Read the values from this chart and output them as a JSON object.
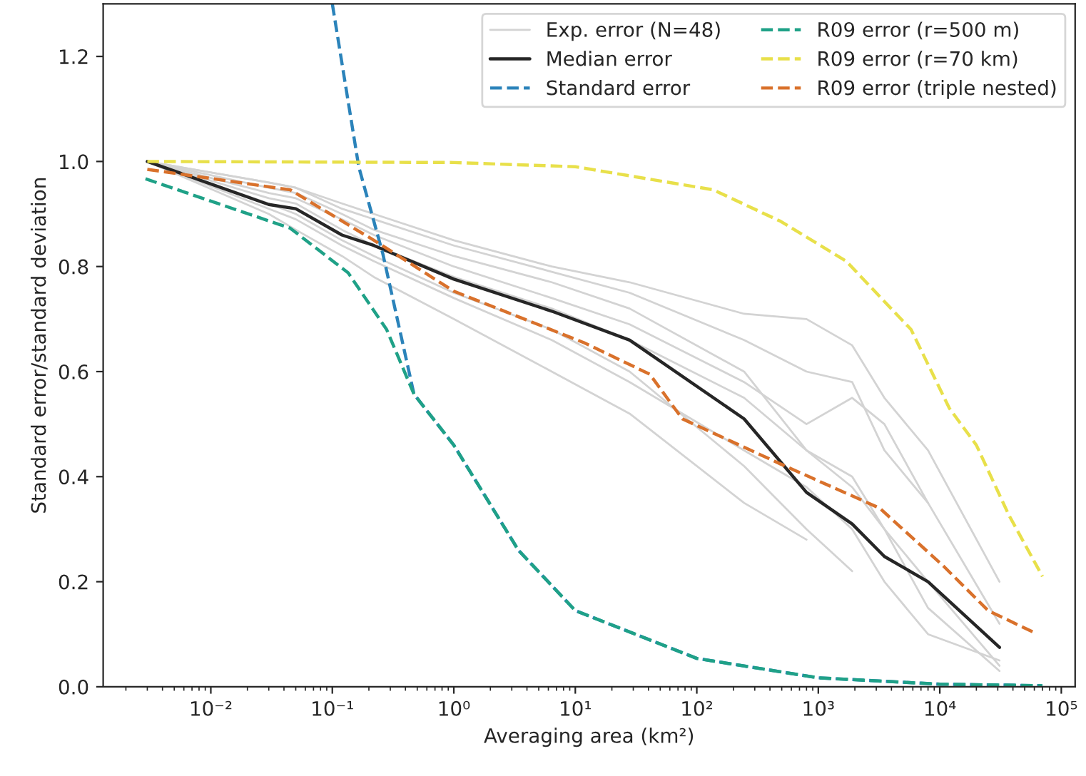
{
  "chart_data": {
    "type": "line",
    "xlabel": "Averaging area (km²)",
    "ylabel": "Standard error/standard deviation",
    "log": "x",
    "grid": false,
    "legend": "top right",
    "xlim": [
      0.0013,
      130000
    ],
    "xticks": [
      {
        "value": 0.01,
        "label": "10⁻²"
      },
      {
        "value": 0.1,
        "label": "10⁻¹"
      },
      {
        "value": 1,
        "label": "10⁰"
      },
      {
        "value": 10,
        "label": "10¹"
      },
      {
        "value": 100,
        "label": "10²"
      },
      {
        "value": 1000,
        "label": "10³"
      },
      {
        "value": 10000,
        "label": "10⁴"
      },
      {
        "value": 100000,
        "label": "10⁵"
      }
    ],
    "ylim": [
      0,
      1.3
    ],
    "yticks": [
      {
        "value": 0,
        "label": "0.0"
      },
      {
        "value": 0.2,
        "label": "0.2"
      },
      {
        "value": 0.4,
        "label": "0.4"
      },
      {
        "value": 0.6,
        "label": "0.6"
      },
      {
        "value": 0.8,
        "label": "0.8"
      },
      {
        "value": 1.0,
        "label": "1.0"
      },
      {
        "value": 1.2,
        "label": "1.2"
      }
    ],
    "x": [
      0.003,
      0.03,
      0.05,
      0.12,
      0.22,
      1,
      6.4,
      28,
      245,
      800,
      1900,
      3500,
      8000,
      31000
    ],
    "series": [
      {
        "name": "Exp. error (N=48)",
        "color": "#d3d3d3",
        "line_style": "solid",
        "values": [
          1,
          0.96,
          0.95,
          0.92,
          0.9,
          0.85,
          0.8,
          0.77,
          0.71,
          0.7,
          0.65,
          0.55,
          0.45,
          0.2
        ]
      },
      {
        "color": "#d3d3d3",
        "line_style": "solid",
        "values": [
          1,
          0.94,
          0.93,
          0.89,
          0.86,
          0.8,
          0.74,
          0.69,
          0.58,
          0.5,
          0.55,
          0.5,
          0.35,
          0.12
        ]
      },
      {
        "color": "#d3d3d3",
        "line_style": "solid",
        "values": [
          1,
          0.9,
          0.87,
          0.82,
          0.78,
          0.7,
          0.6,
          0.52,
          0.35,
          0.28,
          null,
          null,
          null,
          null
        ]
      },
      {
        "color": "#d3d3d3",
        "line_style": "solid",
        "values": [
          1,
          0.92,
          0.9,
          0.85,
          0.82,
          0.75,
          0.68,
          0.6,
          0.42,
          0.3,
          0.22,
          null,
          null,
          null
        ]
      },
      {
        "color": "#d3d3d3",
        "line_style": "solid",
        "values": [
          1,
          0.95,
          0.94,
          0.9,
          0.87,
          0.82,
          0.77,
          0.72,
          0.6,
          0.45,
          0.38,
          0.3,
          0.2,
          0.04
        ]
      },
      {
        "color": "#d3d3d3",
        "line_style": "solid",
        "values": [
          1,
          0.93,
          0.92,
          0.87,
          0.84,
          0.78,
          0.72,
          0.66,
          0.55,
          0.45,
          0.4,
          0.3,
          0.15,
          0.03
        ]
      },
      {
        "color": "#d3d3d3",
        "line_style": "solid",
        "values": [
          1,
          0.96,
          0.95,
          0.91,
          0.89,
          0.84,
          0.79,
          0.75,
          0.66,
          0.6,
          0.58,
          0.45,
          0.35,
          null
        ]
      },
      {
        "color": "#d3d3d3",
        "line_style": "solid",
        "values": [
          1,
          0.91,
          0.89,
          0.84,
          0.81,
          0.74,
          0.66,
          0.58,
          0.45,
          0.38,
          0.3,
          0.2,
          0.1,
          0.05
        ]
      },
      {
        "name": "Median error",
        "color": "#262626",
        "line_style": "solid",
        "values": [
          1,
          0.918,
          0.91,
          0.86,
          0.84,
          0.776,
          0.715,
          0.66,
          0.51,
          0.37,
          0.31,
          0.248,
          0.2,
          0.075
        ]
      },
      {
        "name": "Standard error",
        "color": "#2b83ba",
        "line_style": "dashed",
        "x": [
          0.1,
          0.165,
          0.26,
          0.47,
          1,
          3.4,
          10,
          100,
          1000,
          10000,
          70000
        ],
        "values": [
          1.3,
          0.99,
          0.825,
          0.557,
          0.46,
          0.26,
          0.145,
          0.054,
          0.017,
          0.005,
          0.002
        ]
      },
      {
        "name": "R09 error (r=500 m)",
        "color": "#1fa187",
        "line_style": "dashed",
        "x": [
          0.0029,
          0.045,
          0.135,
          0.28,
          0.47,
          1,
          3.4,
          10,
          100,
          1000,
          10000,
          70000
        ],
        "values": [
          0.967,
          0.873,
          0.788,
          0.68,
          0.557,
          0.46,
          0.26,
          0.145,
          0.054,
          0.017,
          0.005,
          0.002
        ]
      },
      {
        "name": "R09 error (r=70 km)",
        "color": "#e8e04a",
        "line_style": "dashed",
        "x": [
          0.003,
          1,
          10,
          137,
          490,
          1700,
          5800,
          12000,
          20000,
          37000,
          70000
        ],
        "values": [
          1.0,
          0.998,
          0.99,
          0.946,
          0.886,
          0.81,
          0.68,
          0.53,
          0.46,
          0.327,
          0.21
        ]
      },
      {
        "name": "R09 error (triple nested)",
        "color": "#d9712b",
        "line_style": "dashed",
        "x": [
          0.003,
          0.045,
          0.22,
          1,
          11.8,
          41,
          76,
          490,
          3200,
          10700,
          25000,
          60000
        ],
        "values": [
          0.985,
          0.946,
          0.85,
          0.753,
          0.655,
          0.595,
          0.51,
          0.424,
          0.34,
          0.23,
          0.145,
          0.103
        ]
      }
    ]
  }
}
